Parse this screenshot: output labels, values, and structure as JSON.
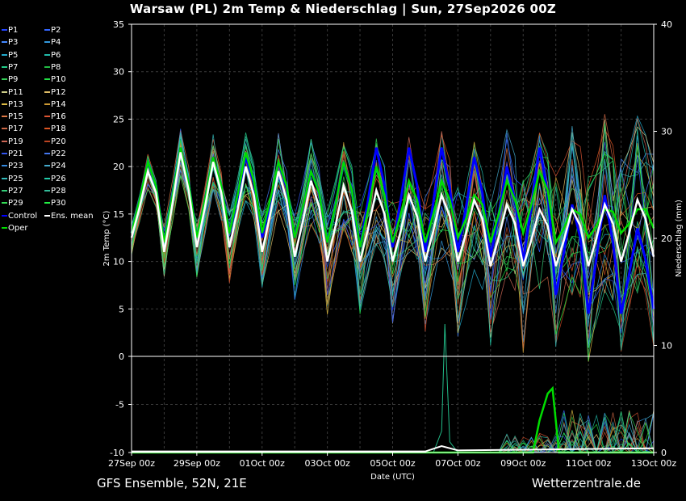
{
  "title": "Warsaw  (PL)  2m Temp & Niederschlag | Sun, 27Sep2026 00Z",
  "footer": {
    "left": "GFS Ensemble, 52N, 21E",
    "right": "Wetterzentrale.de"
  },
  "legend": [
    {
      "label": "P1",
      "color": "#2244ff"
    },
    {
      "label": "P2",
      "color": "#3366ff"
    },
    {
      "label": "P3",
      "color": "#4488ff"
    },
    {
      "label": "P4",
      "color": "#3399dd"
    },
    {
      "label": "P5",
      "color": "#22aacc"
    },
    {
      "label": "P6",
      "color": "#22bbaa"
    },
    {
      "label": "P7",
      "color": "#22cc88"
    },
    {
      "label": "P8",
      "color": "#22bb44"
    },
    {
      "label": "P9",
      "color": "#33cc55"
    },
    {
      "label": "P10",
      "color": "#22dd44"
    },
    {
      "label": "P11",
      "color": "#cccc88"
    },
    {
      "label": "P12",
      "color": "#ddbb66"
    },
    {
      "label": "P13",
      "color": "#ddbb44"
    },
    {
      "label": "P14",
      "color": "#cc9933"
    },
    {
      "label": "P15",
      "color": "#dd7744"
    },
    {
      "label": "P16",
      "color": "#dd5533"
    },
    {
      "label": "P17",
      "color": "#cc6644"
    },
    {
      "label": "P18",
      "color": "#dd5522"
    },
    {
      "label": "P19",
      "color": "#cc6655"
    },
    {
      "label": "P20",
      "color": "#bb4422"
    },
    {
      "label": "P21",
      "color": "#3355ee"
    },
    {
      "label": "P22",
      "color": "#4477ee"
    },
    {
      "label": "P23",
      "color": "#3388dd"
    },
    {
      "label": "P24",
      "color": "#44aacc"
    },
    {
      "label": "P25",
      "color": "#33bbbb"
    },
    {
      "label": "P26",
      "color": "#22ccaa"
    },
    {
      "label": "P27",
      "color": "#33cc77"
    },
    {
      "label": "P28",
      "color": "#33bb99"
    },
    {
      "label": "P29",
      "color": "#33dd55"
    },
    {
      "label": "P30",
      "color": "#22ee44"
    },
    {
      "label": "Control",
      "color": "#0000ff"
    },
    {
      "label": "Ens. mean",
      "color": "#ffffff"
    },
    {
      "label": "Oper",
      "color": "#00dd00"
    }
  ],
  "chart_data": {
    "type": "line",
    "ylabel": "2m Temp (°C)",
    "y2label": "Niederschlag (mm)",
    "xlabel": "Date (UTC)",
    "ylim": [
      -10,
      35
    ],
    "y2lim": [
      0,
      40
    ],
    "yticks": [
      -10,
      -5,
      0,
      5,
      10,
      15,
      20,
      25,
      30,
      35
    ],
    "y2ticks": [
      0,
      10,
      20,
      30,
      40
    ],
    "xticks": [
      "27Sep 00z",
      "29Sep 00z",
      "01Oct 00z",
      "03Oct 00z",
      "05Oct 00z",
      "07Oct 00z",
      "09Oct 00z",
      "11Oct 00z",
      "13Oct 00z"
    ],
    "grid": true,
    "temperature_mean": {
      "max": [
        19.5,
        21.5,
        20.5,
        20,
        19.5,
        18.5,
        18,
        17.5,
        17,
        17,
        16.5,
        16,
        15.5,
        15.5,
        16,
        16.5
      ],
      "min": [
        12,
        10.5,
        11,
        11,
        10.5,
        10,
        9.5,
        9.5,
        9.5,
        9.5,
        9.5,
        9,
        9,
        9,
        9,
        9.5
      ]
    },
    "temperature_oper": {
      "max": [
        20.5,
        22,
        21,
        21.5,
        20.5,
        19.5,
        20.5,
        20,
        18.5,
        18.5,
        17,
        18.5,
        19.5,
        15.5,
        15.5,
        15.5
      ],
      "min": [
        12.5,
        11.5,
        12,
        12.5,
        12.5,
        12,
        11.5,
        11,
        11.5,
        11.5,
        12,
        11.5,
        12.5,
        11.5,
        12,
        12.5
      ]
    },
    "temperature_control": {
      "max": [
        20.5,
        22,
        21,
        21,
        20.5,
        19.5,
        20.5,
        22,
        22,
        22,
        21,
        20,
        22,
        16,
        17,
        13.5
      ],
      "min": [
        12.5,
        11.5,
        12,
        12.5,
        12,
        12,
        11.5,
        11,
        11,
        10.5,
        10.5,
        10,
        9.5,
        6,
        4,
        4
      ]
    },
    "precip_oper_peak": {
      "date": "09Oct 18z",
      "mm": 6.5
    },
    "precip_spike": {
      "date": "06Oct 12z",
      "mm": 13
    }
  }
}
